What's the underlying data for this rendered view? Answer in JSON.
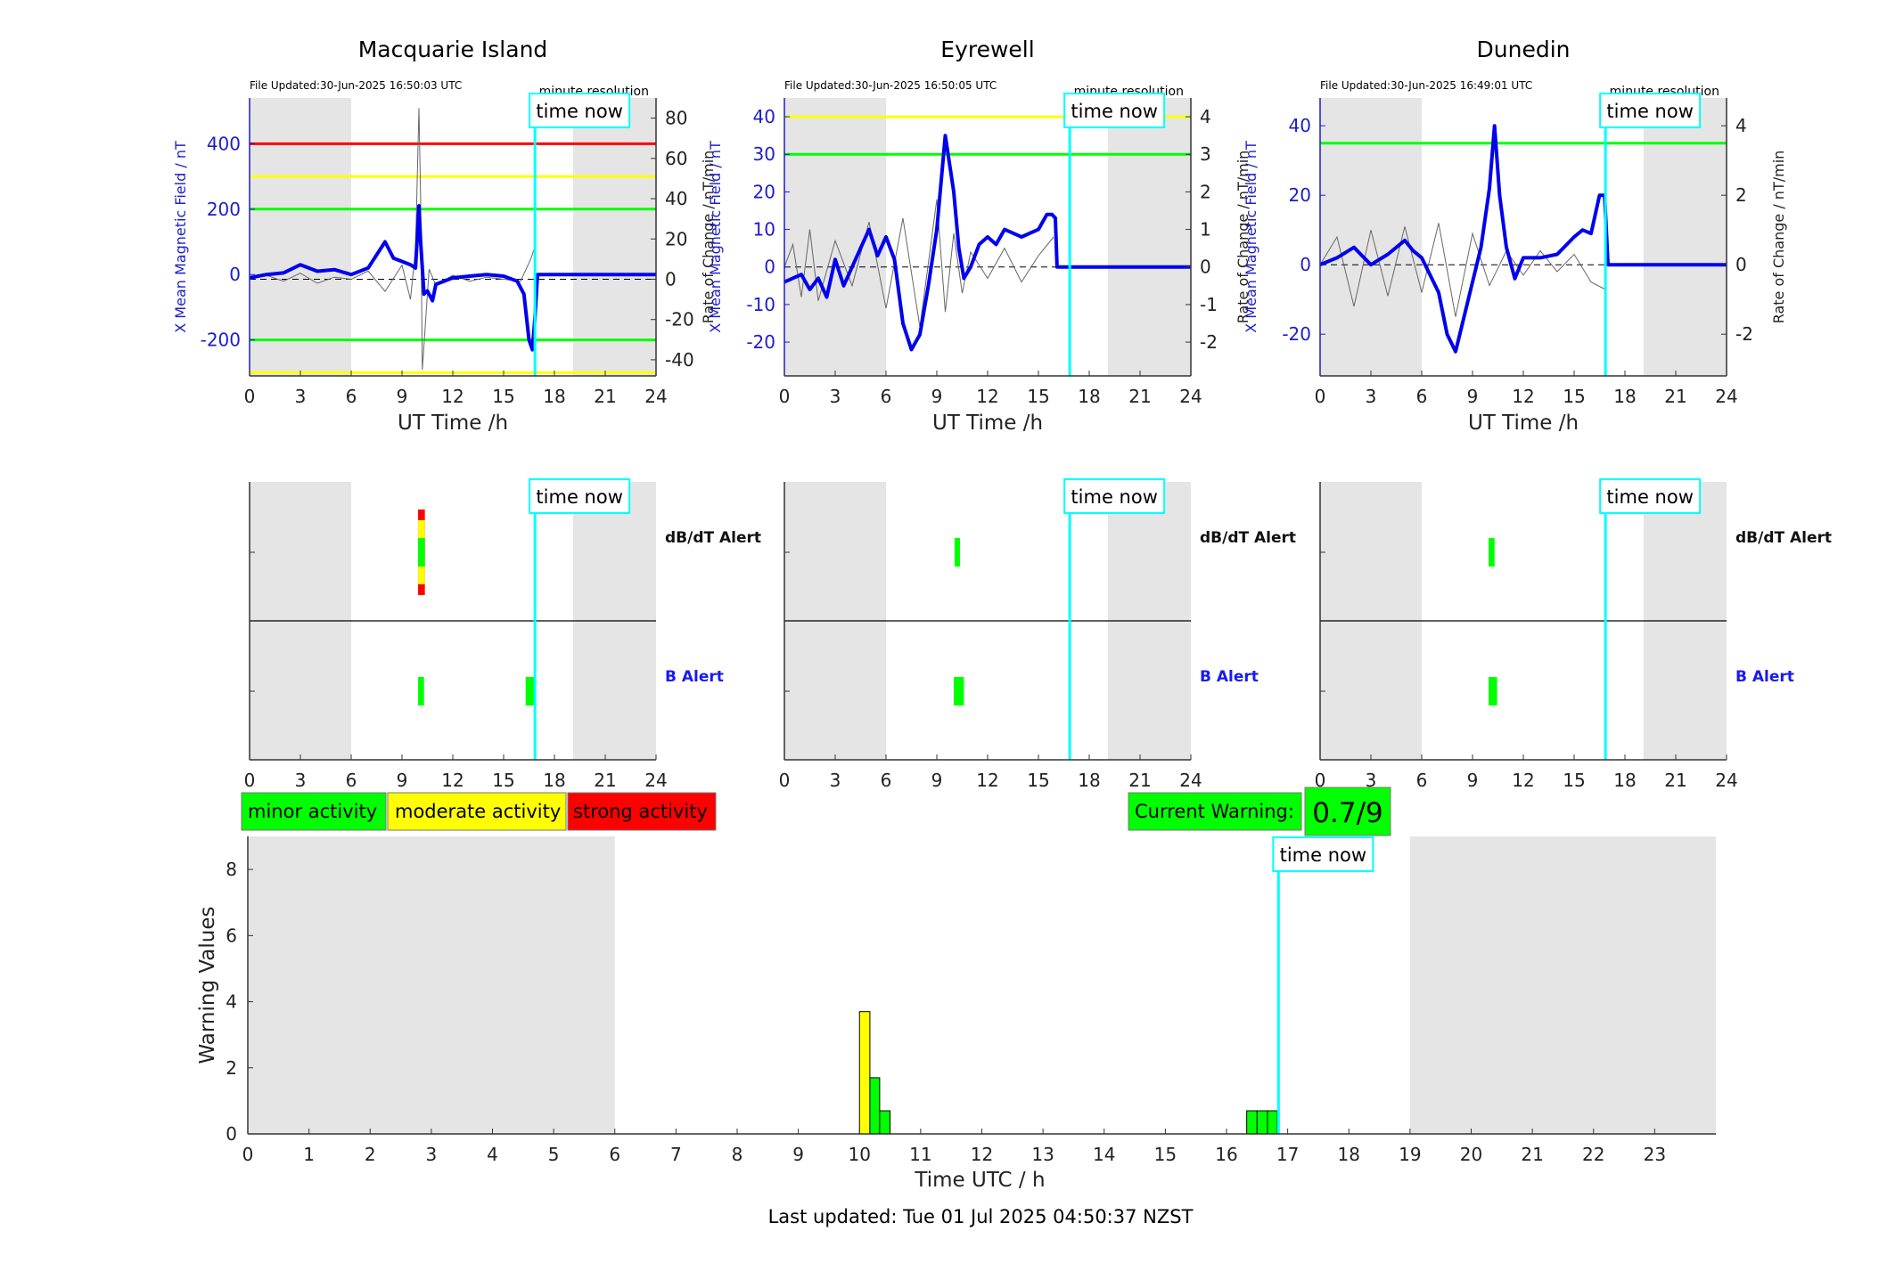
{
  "chart_data": [
    {
      "type": "line",
      "title": "Macquarie Island",
      "file_updated": "File Updated:30-Jun-2025 16:50:03 UTC",
      "resolution_label": "minute resolution",
      "time_now_label": "time now",
      "xlabel": "UT Time /h",
      "ylabel_left": "X Mean Magnetic Field / nT",
      "ylabel_right": "Rate of Change / nT/min",
      "xlim": [
        0,
        24
      ],
      "ylim_left": [
        -310,
        540
      ],
      "ylim_right": [
        -48,
        90
      ],
      "x_ticks": [
        0,
        3,
        6,
        9,
        12,
        15,
        18,
        21,
        24
      ],
      "y_ticks_left": [
        -200,
        0,
        200,
        400
      ],
      "y_ticks_right": [
        -40,
        -20,
        0,
        20,
        40,
        60,
        80
      ],
      "night_shading": [
        [
          0,
          6
        ],
        [
          19.1,
          24
        ]
      ],
      "time_now": 16.85,
      "threshold_lines": [
        {
          "value": 400,
          "color": "#ff0000"
        },
        {
          "value": 300,
          "color": "#ffff00"
        },
        {
          "value": 200,
          "color": "#00ff00"
        },
        {
          "value": -200,
          "color": "#00ff00"
        },
        {
          "value": -300,
          "color": "#ffff00"
        }
      ],
      "series": [
        {
          "values_x": [
            0,
            1,
            2,
            3,
            4,
            5,
            6,
            7,
            7.5,
            8,
            8.5,
            9,
            9.5,
            9.8,
            10,
            10.1,
            10.3,
            10.5,
            10.8,
            11,
            12,
            13,
            14,
            15,
            15.8,
            16.2,
            16.5,
            16.7,
            16.85,
            17,
            24
          ],
          "values_y": [
            -10,
            0,
            5,
            30,
            10,
            15,
            0,
            20,
            60,
            100,
            50,
            40,
            30,
            20,
            210,
            100,
            -60,
            -50,
            -80,
            -30,
            -10,
            -5,
            0,
            -5,
            -20,
            -60,
            -200,
            -230,
            -130,
            0,
            0
          ]
        }
      ],
      "rate_of_change": {
        "values_x": [
          0,
          1,
          2,
          3,
          4,
          5,
          6,
          7,
          8,
          9,
          9.5,
          9.8,
          10,
          10.1,
          10.2,
          10.4,
          10.6,
          11,
          12,
          13,
          14,
          15,
          16,
          16.6,
          16.8
        ],
        "values_y": [
          0,
          2,
          -1,
          3,
          -2,
          1,
          0,
          4,
          -6,
          7,
          -10,
          15,
          85,
          40,
          -45,
          -20,
          5,
          -3,
          2,
          -1,
          1,
          0,
          -1,
          10,
          15
        ]
      }
    },
    {
      "type": "line",
      "title": "Eyrewell",
      "file_updated": "File Updated:30-Jun-2025 16:50:05 UTC",
      "resolution_label": "minute resolution",
      "time_now_label": "time now",
      "xlabel": "UT Time /h",
      "ylabel_left": "X Mean Magnetic Field / nT",
      "ylabel_right": "Rate of Change / nT/min",
      "xlim": [
        0,
        24
      ],
      "ylim_left": [
        -29,
        45
      ],
      "ylim_right": [
        -2.9,
        4.5
      ],
      "x_ticks": [
        0,
        3,
        6,
        9,
        12,
        15,
        18,
        21,
        24
      ],
      "y_ticks_left": [
        -20,
        -10,
        0,
        10,
        20,
        30,
        40
      ],
      "y_ticks_right": [
        -2,
        -1,
        0,
        1,
        2,
        3,
        4
      ],
      "night_shading": [
        [
          0,
          6
        ],
        [
          19.1,
          24
        ]
      ],
      "time_now": 16.85,
      "threshold_lines": [
        {
          "value": 40,
          "color": "#ffff00"
        },
        {
          "value": 30,
          "color": "#00ff00"
        }
      ],
      "series": [
        {
          "values_x": [
            0,
            1,
            1.5,
            2,
            2.5,
            3,
            3.5,
            4,
            4.5,
            5,
            5.5,
            6,
            6.5,
            7,
            7.5,
            8,
            8.5,
            9,
            9.5,
            10,
            10.3,
            10.6,
            11,
            11.5,
            12,
            12.5,
            13,
            14,
            15,
            15.5,
            15.8,
            16,
            16.1,
            24
          ],
          "values_y": [
            -4,
            -2,
            -6,
            -3,
            -8,
            2,
            -5,
            0,
            5,
            10,
            3,
            8,
            2,
            -15,
            -22,
            -18,
            -5,
            10,
            35,
            20,
            5,
            -3,
            0,
            6,
            8,
            6,
            10,
            8,
            10,
            14,
            14,
            13,
            0,
            0
          ]
        }
      ],
      "rate_of_change": {
        "values_x": [
          0,
          0.5,
          1,
          1.5,
          2,
          3,
          4,
          5,
          6,
          7,
          8,
          9,
          9.5,
          10,
          10.5,
          11,
          12,
          13,
          14,
          15,
          15.9
        ],
        "values_y": [
          0,
          0.6,
          -0.8,
          1,
          -0.9,
          0.7,
          -0.5,
          1.2,
          -1.1,
          1.3,
          -1.6,
          1.8,
          -1.2,
          0.9,
          -0.7,
          0.4,
          -0.3,
          0.5,
          -0.4,
          0.3,
          0.8
        ]
      }
    },
    {
      "type": "line",
      "title": "Dunedin",
      "file_updated": "File Updated:30-Jun-2025 16:49:01 UTC",
      "resolution_label": "minute resolution",
      "time_now_label": "time now",
      "xlabel": "UT Time /h",
      "ylabel_left": "X Mean Magnetic Field / nT",
      "ylabel_right": "Rate of Change / nT/min",
      "xlim": [
        0,
        24
      ],
      "ylim_left": [
        -32,
        48
      ],
      "ylim_right": [
        -3.2,
        4.8
      ],
      "x_ticks": [
        0,
        3,
        6,
        9,
        12,
        15,
        18,
        21,
        24
      ],
      "y_ticks_left": [
        -20,
        0,
        20,
        40
      ],
      "y_ticks_right": [
        -2,
        0,
        2,
        4
      ],
      "night_shading": [
        [
          0,
          6
        ],
        [
          19.1,
          24
        ]
      ],
      "time_now": 16.85,
      "threshold_lines": [
        {
          "value": 35,
          "color": "#00ff00"
        }
      ],
      "series": [
        {
          "values_x": [
            0,
            1,
            2,
            3,
            4,
            5,
            5.5,
            6,
            6.5,
            7,
            7.5,
            8,
            8.5,
            9,
            9.5,
            10,
            10.3,
            10.6,
            11,
            11.5,
            12,
            13,
            14,
            15,
            15.5,
            16,
            16.5,
            16.8,
            17,
            24
          ],
          "values_y": [
            0,
            2,
            5,
            0,
            3,
            7,
            4,
            2,
            -3,
            -8,
            -20,
            -25,
            -15,
            -5,
            5,
            22,
            40,
            20,
            5,
            -4,
            2,
            2,
            3,
            8,
            10,
            9,
            20,
            20,
            0,
            0
          ]
        }
      ],
      "rate_of_change": {
        "values_x": [
          0,
          1,
          2,
          3,
          4,
          5,
          6,
          7,
          8,
          9,
          10,
          11,
          12,
          13,
          14,
          15,
          16,
          16.8
        ],
        "values_y": [
          0,
          0.8,
          -1.2,
          1,
          -0.9,
          1.1,
          -0.8,
          1.2,
          -1.5,
          0.9,
          -0.6,
          0.4,
          -0.3,
          0.4,
          -0.2,
          0.3,
          -0.5,
          -0.7
        ]
      }
    },
    {
      "type": "bar",
      "station": "Macquarie Island",
      "row_labels": [
        "dB/dT Alert",
        "B Alert"
      ],
      "time_now_label": "time now",
      "xlim": [
        0,
        24
      ],
      "x_ticks": [
        0,
        3,
        6,
        9,
        12,
        15,
        18,
        21,
        24
      ],
      "night_shading": [
        [
          0,
          6
        ],
        [
          19.1,
          24
        ]
      ],
      "time_now": 16.85,
      "dbdt_alerts": [
        {
          "start": 9.95,
          "end": 10.35,
          "level": "strong"
        },
        {
          "start": 9.95,
          "end": 10.35,
          "level": "moderate"
        },
        {
          "start": 9.95,
          "end": 10.35,
          "level": "minor"
        }
      ],
      "b_alerts": [
        {
          "start": 9.95,
          "end": 10.3,
          "level": "minor"
        },
        {
          "start": 16.3,
          "end": 16.85,
          "level": "minor"
        }
      ]
    },
    {
      "type": "bar",
      "station": "Eyrewell",
      "row_labels": [
        "dB/dT Alert",
        "B Alert"
      ],
      "time_now_label": "time now",
      "xlim": [
        0,
        24
      ],
      "x_ticks": [
        0,
        3,
        6,
        9,
        12,
        15,
        18,
        21,
        24
      ],
      "night_shading": [
        [
          0,
          6
        ],
        [
          19.1,
          24
        ]
      ],
      "time_now": 16.85,
      "dbdt_alerts": [
        {
          "start": 10.05,
          "end": 10.35,
          "level": "minor"
        }
      ],
      "b_alerts": [
        {
          "start": 10.0,
          "end": 10.6,
          "level": "minor"
        }
      ]
    },
    {
      "type": "bar",
      "station": "Dunedin",
      "row_labels": [
        "dB/dT Alert",
        "B Alert"
      ],
      "time_now_label": "time now",
      "xlim": [
        0,
        24
      ],
      "x_ticks": [
        0,
        3,
        6,
        9,
        12,
        15,
        18,
        21,
        24
      ],
      "night_shading": [
        [
          0,
          6
        ],
        [
          19.1,
          24
        ]
      ],
      "time_now": 16.85,
      "dbdt_alerts": [
        {
          "start": 9.95,
          "end": 10.3,
          "level": "minor"
        }
      ],
      "b_alerts": [
        {
          "start": 9.95,
          "end": 10.45,
          "level": "minor"
        }
      ]
    },
    {
      "type": "bar",
      "xlabel": "Time UTC / h",
      "ylabel": "Warning Values",
      "time_now_label": "time now",
      "xlim": [
        0,
        24
      ],
      "ylim": [
        0,
        9
      ],
      "x_ticks": [
        0,
        1,
        2,
        3,
        4,
        5,
        6,
        7,
        8,
        9,
        10,
        11,
        12,
        13,
        14,
        15,
        16,
        17,
        18,
        19,
        20,
        21,
        22,
        23
      ],
      "y_ticks": [
        0,
        2,
        4,
        6,
        8
      ],
      "night_shading": [
        [
          0,
          6
        ],
        [
          19,
          24
        ]
      ],
      "time_now": 16.85,
      "bars": [
        {
          "start": 10.0,
          "end": 10.17,
          "value": 3.7,
          "level": "moderate"
        },
        {
          "start": 10.17,
          "end": 10.33,
          "value": 1.7,
          "level": "minor"
        },
        {
          "start": 10.33,
          "end": 10.5,
          "value": 0.7,
          "level": "minor"
        },
        {
          "start": 16.33,
          "end": 16.5,
          "value": 0.7,
          "level": "minor"
        },
        {
          "start": 16.5,
          "end": 16.67,
          "value": 0.7,
          "level": "minor"
        },
        {
          "start": 16.67,
          "end": 16.83,
          "value": 0.7,
          "level": "minor"
        }
      ]
    }
  ],
  "legend": {
    "minor": "minor activity",
    "moderate": "moderate activity",
    "strong": "strong activity"
  },
  "colors": {
    "minor": "#00ff00",
    "moderate": "#ffff00",
    "strong": "#ff0000",
    "time_now": "#00ffff",
    "field_line": "#0000ee",
    "night": "#e5e5e5"
  },
  "current_warning": {
    "label": "Current Warning:",
    "value": "0.7/9"
  },
  "footer": {
    "last_updated": "Last updated: Tue 01 Jul 2025 04:50:37 NZST"
  }
}
